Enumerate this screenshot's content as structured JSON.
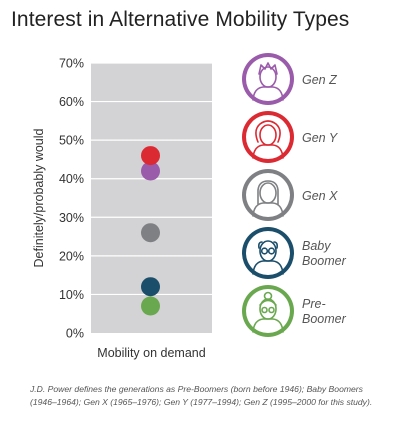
{
  "title": "Interest in Alternative Mobility Types",
  "footnote": "J.D. Power defines the generations as Pre-Boomers (born before 1946); Baby Boomers (1946–1964); Gen X (1965–1976); Gen Y (1977–1994); Gen Z (1995–2000 for this study).",
  "chart_data": {
    "type": "scatter",
    "title": "Interest in Alternative Mobility Types",
    "xlabel": "",
    "ylabel": "Definitely/probably would",
    "categories": [
      "Mobility on demand"
    ],
    "ylim": [
      0,
      70
    ],
    "yticks": [
      "0%",
      "10%",
      "20%",
      "30%",
      "40%",
      "50%",
      "60%",
      "70%"
    ],
    "ytick_values": [
      0,
      10,
      20,
      30,
      40,
      50,
      60,
      70
    ],
    "grid": true,
    "legend_position": "right",
    "series": [
      {
        "name": "Gen Z",
        "color": "#9a5bab",
        "values": [
          42
        ],
        "icon": "gen-z-avatar-icon"
      },
      {
        "name": "Gen Y",
        "color": "#dc2a33",
        "values": [
          46
        ],
        "icon": "gen-y-avatar-icon"
      },
      {
        "name": "Gen X",
        "color": "#7f8083",
        "values": [
          26
        ],
        "icon": "gen-x-avatar-icon"
      },
      {
        "name": "Baby Boomer",
        "legend_lines": [
          "Baby",
          "Boomer"
        ],
        "color": "#1b4e6a",
        "values": [
          12
        ],
        "icon": "baby-boomer-avatar-icon"
      },
      {
        "name": "Pre-Boomer",
        "legend_lines": [
          "Pre-",
          "Boomer"
        ],
        "color": "#6aa84f",
        "values": [
          7
        ],
        "icon": "pre-boomer-avatar-icon"
      }
    ]
  }
}
